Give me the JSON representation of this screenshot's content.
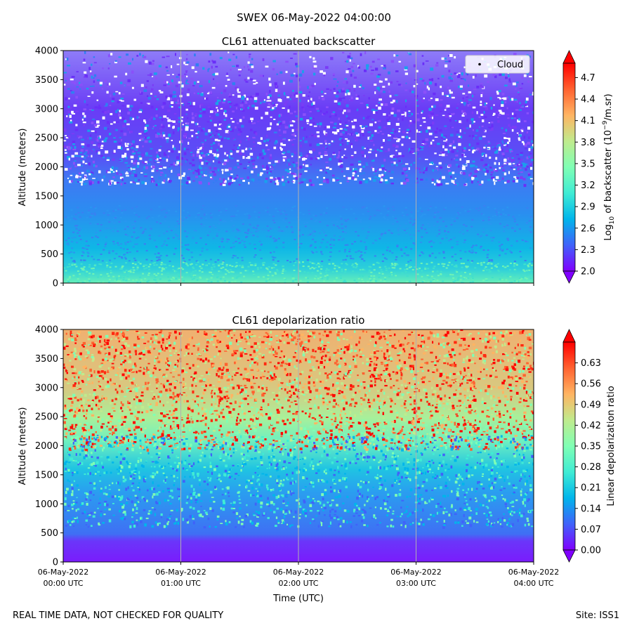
{
  "figure_title": "SWEX 06-May-2022 04:00:00",
  "footer": {
    "left": "REAL TIME DATA, NOT CHECKED FOR QUALITY",
    "right": "Site: ISS1"
  },
  "colors": {
    "rainbow": [
      "#8000ff",
      "#4062fa",
      "#00b5eb",
      "#40ecd4",
      "#80ffb4",
      "#c0eb8d",
      "#ffb462",
      "#ff6230",
      "#ff0000"
    ],
    "gridline": "#b0b0b0"
  },
  "chart_data": [
    {
      "type": "heatmap",
      "title": "CL61 attenuated backscatter",
      "ylabel": "Altitude (meters)",
      "ylim": [
        0,
        4000
      ],
      "yticks": [
        "0",
        "500",
        "1000",
        "1500",
        "2000",
        "2500",
        "3000",
        "3500",
        "4000"
      ],
      "xlim": [
        "06-May-2022 00:00 UTC",
        "06-May-2022 04:00 UTC"
      ],
      "legend": {
        "label": "Cloud",
        "location": "top-right"
      },
      "colorbar": {
        "label_main": "Log",
        "label_sub": "10",
        "label_rest1": " of backscatter (10",
        "label_sup": "−9",
        "label_rest2": "/m.sr)",
        "range": [
          2.0,
          4.9
        ],
        "ticks": [
          "2.0",
          "2.3",
          "2.6",
          "2.9",
          "3.2",
          "3.5",
          "3.8",
          "4.1",
          "4.4",
          "4.7"
        ],
        "extend": "both"
      }
    },
    {
      "type": "heatmap",
      "title": "CL61 depolarization ratio",
      "ylabel": "Altitude (meters)",
      "xlabel": "Time (UTC)",
      "ylim": [
        0,
        4000
      ],
      "yticks": [
        "0",
        "500",
        "1000",
        "1500",
        "2000",
        "2500",
        "3000",
        "3500",
        "4000"
      ],
      "xticks": [
        {
          "date": "06-May-2022",
          "time": "00:00 UTC"
        },
        {
          "date": "06-May-2022",
          "time": "01:00 UTC"
        },
        {
          "date": "06-May-2022",
          "time": "02:00 UTC"
        },
        {
          "date": "06-May-2022",
          "time": "03:00 UTC"
        },
        {
          "date": "06-May-2022",
          "time": "04:00 UTC"
        }
      ],
      "colorbar": {
        "label": "Linear depolarization ratio",
        "range": [
          0.0,
          0.7
        ],
        "ticks": [
          "0.00",
          "0.07",
          "0.14",
          "0.21",
          "0.28",
          "0.35",
          "0.42",
          "0.49",
          "0.56",
          "0.63"
        ],
        "extend": "both"
      }
    }
  ]
}
